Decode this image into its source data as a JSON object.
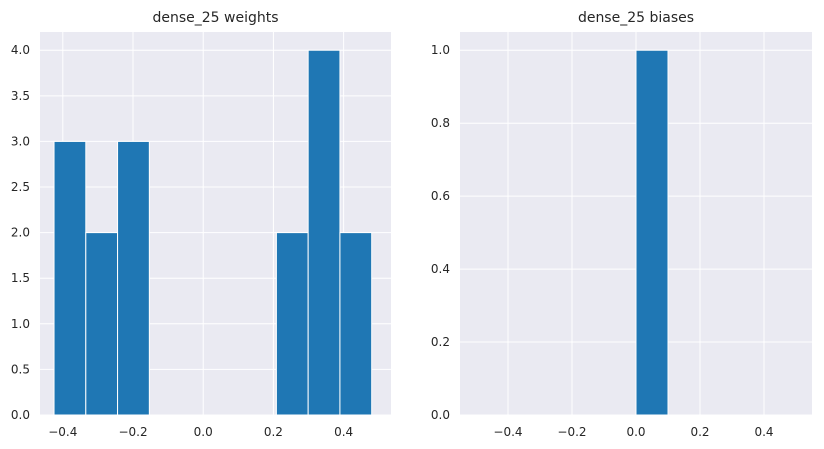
{
  "figure": {
    "background": "#ffffff",
    "plot_background": "#eaeaf2",
    "grid_color": "#ffffff",
    "bar_color": "#1f77b4"
  },
  "chart_data": [
    {
      "type": "bar",
      "title": "dense_25 weights",
      "xlabel": "",
      "ylabel": "",
      "grid": true,
      "xlim": [
        -0.465,
        0.535
      ],
      "ylim": [
        0,
        4.2
      ],
      "bins": [
        {
          "x0": -0.425,
          "x1": -0.3345,
          "count": 3
        },
        {
          "x0": -0.3345,
          "x1": -0.244,
          "count": 2
        },
        {
          "x0": -0.244,
          "x1": -0.1535,
          "count": 3
        },
        {
          "x0": -0.1535,
          "x1": -0.063,
          "count": 0
        },
        {
          "x0": -0.063,
          "x1": 0.0275,
          "count": 0
        },
        {
          "x0": 0.0275,
          "x1": 0.118,
          "count": 0
        },
        {
          "x0": 0.118,
          "x1": 0.2085,
          "count": 0
        },
        {
          "x0": 0.2085,
          "x1": 0.299,
          "count": 2
        },
        {
          "x0": 0.299,
          "x1": 0.3895,
          "count": 4
        },
        {
          "x0": 0.3895,
          "x1": 0.48,
          "count": 2
        }
      ],
      "xticks": [
        -0.4,
        -0.2,
        0.0,
        0.2,
        0.4
      ],
      "xtick_labels": [
        "−0.4",
        "−0.2",
        "0.0",
        "0.2",
        "0.4"
      ],
      "yticks": [
        0,
        0.5,
        1.0,
        1.5,
        2.0,
        2.5,
        3.0,
        3.5,
        4.0
      ],
      "ytick_labels": [
        "0.0",
        "0.5",
        "1.0",
        "1.5",
        "2.0",
        "2.5",
        "3.0",
        "3.5",
        "4.0"
      ]
    },
    {
      "type": "bar",
      "title": "dense_25 biases",
      "xlabel": "",
      "ylabel": "",
      "grid": true,
      "xlim": [
        -0.55,
        0.55
      ],
      "ylim": [
        0,
        1.05
      ],
      "bins": [
        {
          "x0": 0.0,
          "x1": 0.1,
          "count": 1
        }
      ],
      "xticks": [
        -0.4,
        -0.2,
        0.0,
        0.2,
        0.4
      ],
      "xtick_labels": [
        "−0.4",
        "−0.2",
        "0.0",
        "0.2",
        "0.4"
      ],
      "yticks": [
        0,
        0.2,
        0.4,
        0.6,
        0.8,
        1.0
      ],
      "ytick_labels": [
        "0.0",
        "0.2",
        "0.4",
        "0.6",
        "0.8",
        "1.0"
      ]
    }
  ]
}
